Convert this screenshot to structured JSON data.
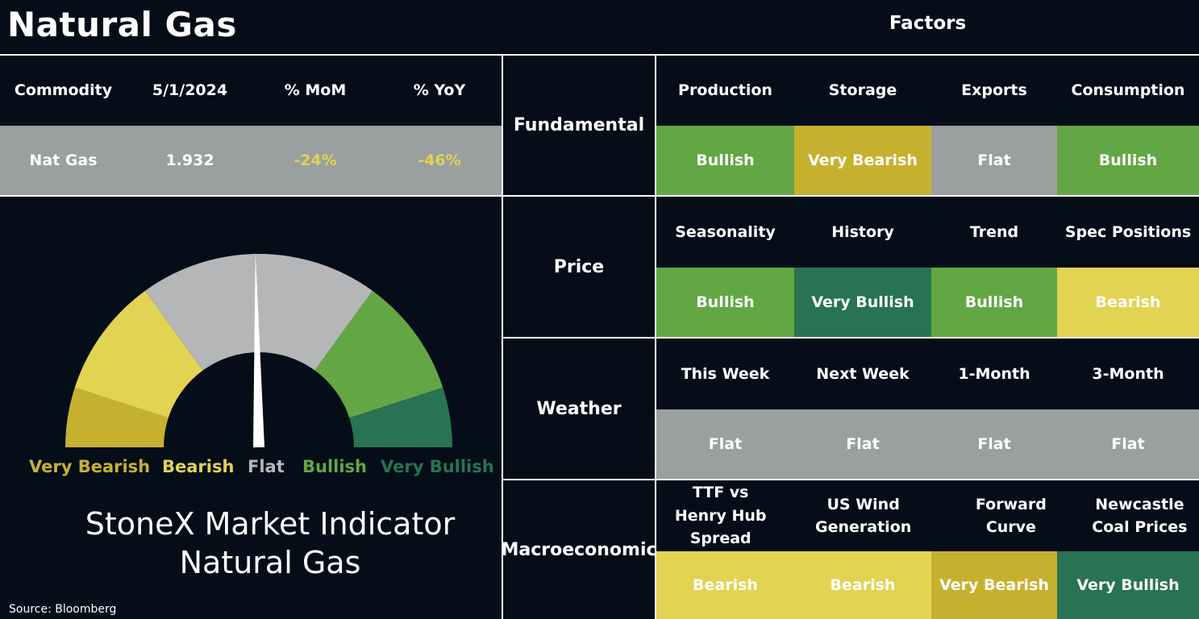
{
  "page": {
    "title": "Natural Gas",
    "factors_title": "Factors",
    "source": "Source: Bloomberg"
  },
  "colors": {
    "background": "#040d18",
    "very_bearish": "#c6b12f",
    "bearish": "#e2d352",
    "flat": "#9aa09f",
    "bullish": "#62a744",
    "very_bullish": "#277354"
  },
  "commodity_table": {
    "headers": [
      "Commodity",
      "5/1/2024",
      "% MoM",
      "% YoY"
    ],
    "row": [
      "Nat Gas",
      "1.932",
      "-24%",
      "-46%"
    ]
  },
  "chart_data": {
    "type": "gauge",
    "title": "StoneX Market Indicator",
    "subtitle": "Natural Gas",
    "segments": [
      {
        "label": "Very Bearish",
        "color": "#c6b12f",
        "start_deg": 0,
        "end_deg": 18
      },
      {
        "label": "Bearish",
        "color": "#e2d352",
        "start_deg": 18,
        "end_deg": 54
      },
      {
        "label": "Flat",
        "color": "#b5b6b7",
        "start_deg": 54,
        "end_deg": 126
      },
      {
        "label": "Bullish",
        "color": "#62a744",
        "start_deg": 126,
        "end_deg": 162
      },
      {
        "label": "Very Bullish",
        "color": "#277354",
        "start_deg": 162,
        "end_deg": 180
      }
    ],
    "needle_deg": 89,
    "label_colors": [
      "#c6b12f",
      "#e2d352",
      "#b5b6b7",
      "#62a744",
      "#277354"
    ]
  },
  "factors": [
    {
      "category": "Fundamental",
      "items": [
        {
          "name": "Production",
          "signal": "Bullish"
        },
        {
          "name": "Storage",
          "signal": "Very Bearish"
        },
        {
          "name": "Exports",
          "signal": "Flat"
        },
        {
          "name": "Consumption",
          "signal": "Bullish"
        }
      ]
    },
    {
      "category": "Price",
      "items": [
        {
          "name": "Seasonality",
          "signal": "Bullish"
        },
        {
          "name": "History",
          "signal": "Very Bullish"
        },
        {
          "name": "Trend",
          "signal": "Bullish"
        },
        {
          "name": "Spec Positions",
          "signal": "Bearish"
        }
      ]
    },
    {
      "category": "Weather",
      "items": [
        {
          "name": "This Week",
          "signal": "Flat"
        },
        {
          "name": "Next Week",
          "signal": "Flat"
        },
        {
          "name": "1-Month",
          "signal": "Flat"
        },
        {
          "name": "3-Month",
          "signal": "Flat"
        }
      ]
    },
    {
      "category": "Macroeconomic",
      "items": [
        {
          "name": "TTF vs Henry Hub Spread",
          "signal": "Bearish"
        },
        {
          "name": "US Wind Generation",
          "signal": "Bearish"
        },
        {
          "name": "Forward Curve",
          "signal": "Very Bearish"
        },
        {
          "name": "Newcastle Coal Prices",
          "signal": "Very Bullish"
        }
      ]
    }
  ]
}
